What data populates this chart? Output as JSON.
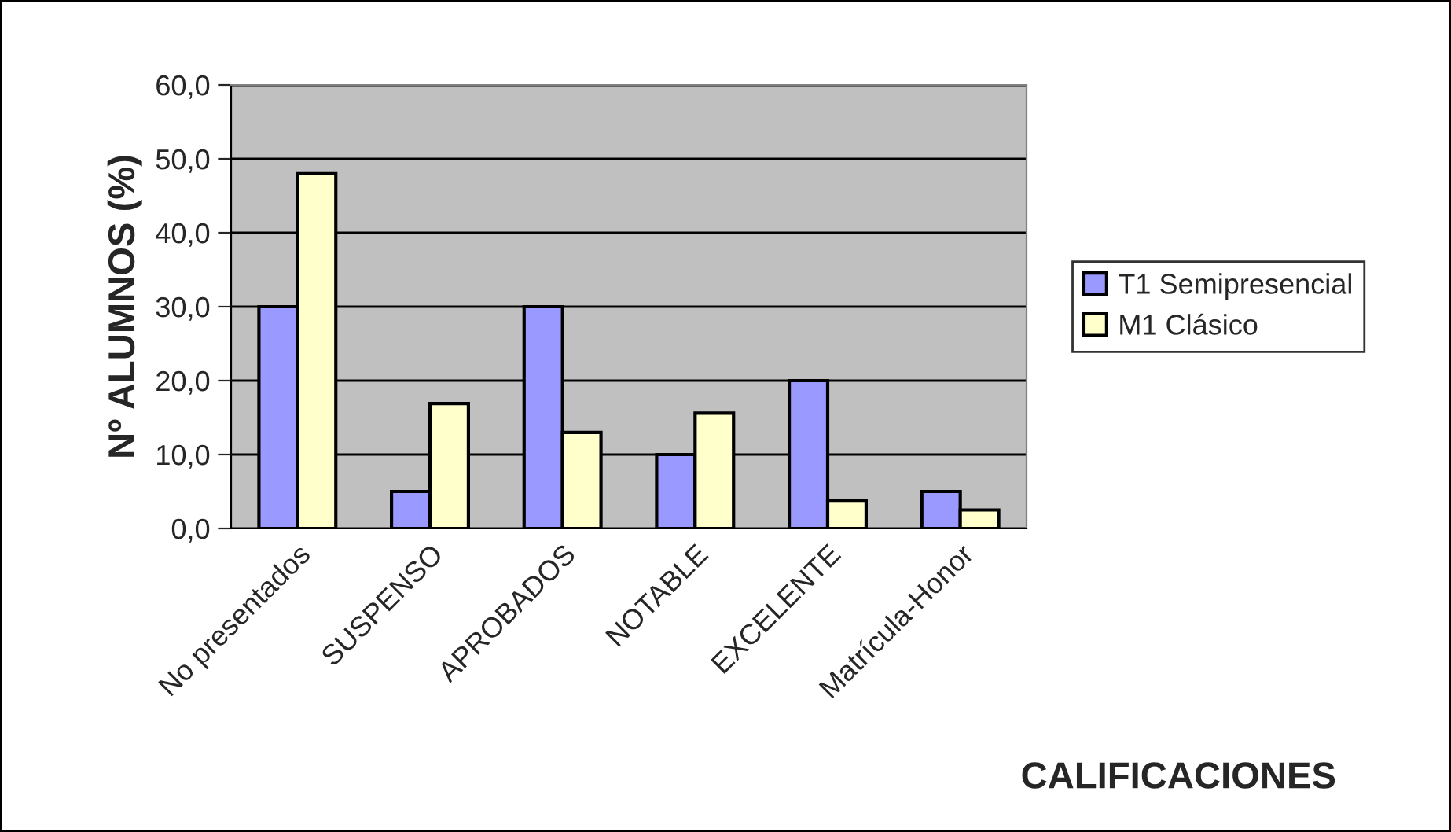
{
  "chart_data": {
    "type": "bar",
    "xlabel": "CALIFICACIONES",
    "ylabel": "Nº ALUMNOS (%)",
    "categories": [
      "No presentados",
      "SUSPENSO",
      "APROBADOS",
      "NOTABLE",
      "EXCELENTE",
      "Matrícula-Honor"
    ],
    "series": [
      {
        "name": "T1 Semipresencial",
        "color": "#9999ff",
        "values": [
          30.0,
          5.0,
          30.0,
          10.0,
          20.0,
          5.0
        ]
      },
      {
        "name": "M1 Clásico",
        "color": "#ffffcc",
        "values": [
          48.0,
          16.9,
          13.0,
          15.6,
          3.8,
          2.5
        ]
      }
    ],
    "ylim": [
      0,
      60
    ],
    "yticks": [
      {
        "value": 0,
        "label": "0,0"
      },
      {
        "value": 10,
        "label": "10,0"
      },
      {
        "value": 20,
        "label": "20,0"
      },
      {
        "value": 30,
        "label": "30,0"
      },
      {
        "value": 40,
        "label": "40,0"
      },
      {
        "value": 50,
        "label": "50,0"
      },
      {
        "value": 60,
        "label": "60,0"
      }
    ],
    "grid": "y",
    "legend": "right"
  }
}
